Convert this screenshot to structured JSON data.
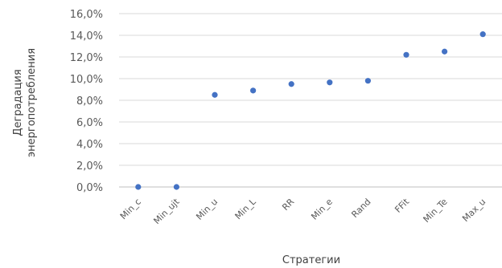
{
  "chart_data": {
    "type": "scatter",
    "title": "",
    "xlabel": "Стратегии",
    "ylabel": [
      "Деградация",
      "энергопотребления"
    ],
    "categories": [
      "Min_c",
      "Min_ujt",
      "Min_u",
      "Min_L",
      "RR",
      "Min_e",
      "Rand",
      "FFit",
      "Min_Te",
      "Max_u"
    ],
    "values": [
      0.0,
      0.0,
      8.5,
      8.9,
      9.5,
      9.65,
      9.8,
      12.2,
      12.5,
      14.1
    ],
    "ylim": [
      0,
      16
    ],
    "yticks": [
      "0,0%",
      "2,0%",
      "4,0%",
      "6,0%",
      "8,0%",
      "10,0%",
      "12,0%",
      "14,0%",
      "16,0%"
    ],
    "grid": true,
    "legend": "none",
    "marker_color": "#4472c4"
  }
}
